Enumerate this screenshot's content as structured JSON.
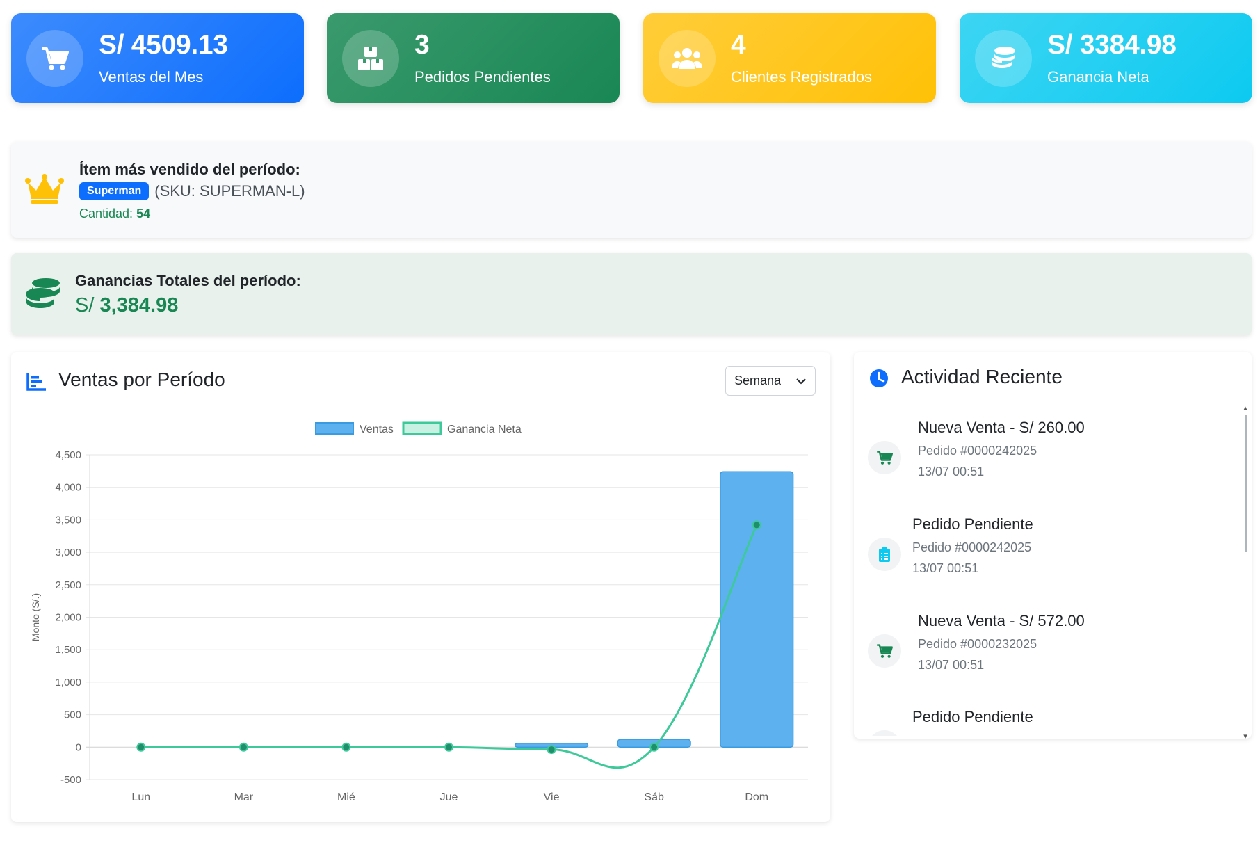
{
  "stats": [
    {
      "value": "S/ 4509.13",
      "label": "Ventas del Mes",
      "icon": "cart-icon"
    },
    {
      "value": "3",
      "label": "Pedidos Pendientes",
      "icon": "boxes-icon"
    },
    {
      "value": "4",
      "label": "Clientes Registrados",
      "icon": "users-icon"
    },
    {
      "value": "S/ 3384.98",
      "label": "Ganancia Neta",
      "icon": "coins-icon"
    }
  ],
  "top_item": {
    "title": "Ítem más vendido del período:",
    "name": "Superman",
    "sku": "(SKU: SUPERMAN-L)",
    "qty_label": "Cantidad:",
    "qty_value": "54"
  },
  "profit": {
    "title": "Ganancias Totales del período:",
    "currency": "S/",
    "amount": "3,384.98"
  },
  "sales_chart": {
    "title": "Ventas por Período",
    "period_select": "Semana"
  },
  "activity": {
    "title": "Actividad Reciente",
    "items": [
      {
        "title": "Nueva Venta - S/ 260.00",
        "order": "Pedido #0000242025",
        "time": "13/07 00:51",
        "icon": "cart-icon"
      },
      {
        "title": "Pedido Pendiente",
        "order": "Pedido #0000242025",
        "time": "13/07 00:51",
        "icon": "clipboard-icon"
      },
      {
        "title": "Nueva Venta - S/ 572.00",
        "order": "Pedido #0000232025",
        "time": "13/07 00:51",
        "icon": "cart-icon"
      },
      {
        "title": "Pedido Pendiente",
        "order": "",
        "time": "",
        "icon": "clipboard-icon"
      }
    ]
  },
  "colors": {
    "primary": "#0d6efd",
    "success": "#198754",
    "warning": "#ffc107",
    "info": "#0dcaf0",
    "bar_fill": "#5eb1ef",
    "line": "#3ec99a"
  },
  "chart_data": {
    "type": "bar",
    "categories": [
      "Lun",
      "Mar",
      "Mié",
      "Jue",
      "Vie",
      "Sáb",
      "Dom"
    ],
    "series": [
      {
        "name": "Ventas",
        "type": "bar",
        "values": [
          0,
          0,
          0,
          0,
          60,
          120,
          4240
        ]
      },
      {
        "name": "Ganancia Neta",
        "type": "line",
        "values": [
          0,
          0,
          0,
          0,
          -35,
          0,
          3420
        ]
      }
    ],
    "ylabel": "Monto (S/.)",
    "ylim": [
      -500,
      4500
    ],
    "yticks": [
      -500,
      0,
      500,
      1000,
      1500,
      2000,
      2500,
      3000,
      3500,
      4000,
      4500
    ],
    "ytick_labels": [
      "-500",
      "0",
      "500",
      "1,000",
      "1,500",
      "2,000",
      "2,500",
      "3,000",
      "3,500",
      "4,000",
      "4,500"
    ],
    "legend": "top",
    "grid": true
  }
}
